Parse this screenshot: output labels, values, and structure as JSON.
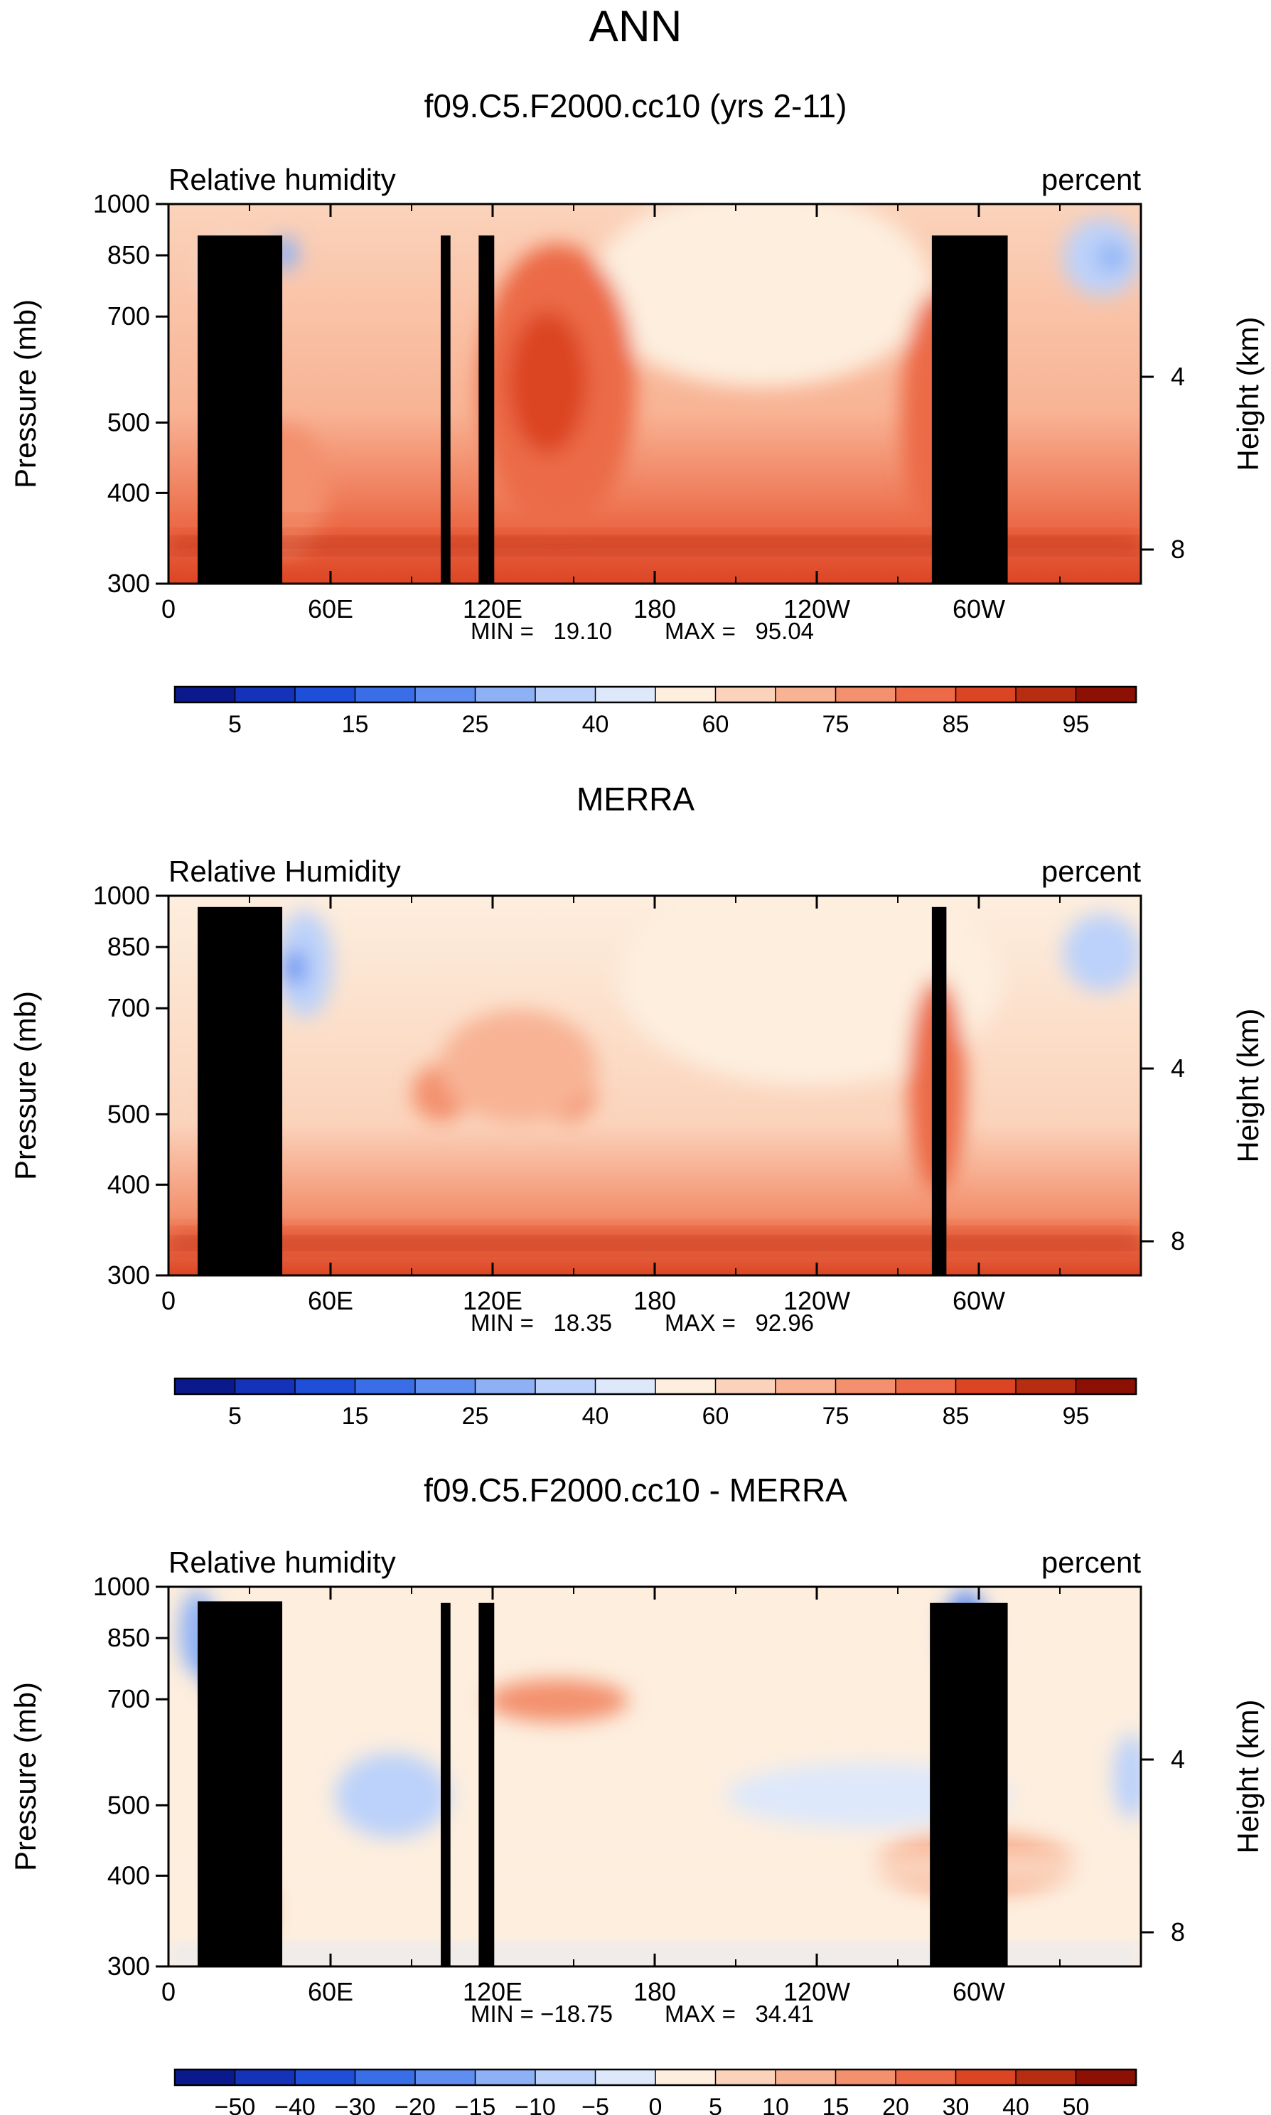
{
  "page_title": "ANN",
  "chart_data": [
    {
      "type": "heatmap",
      "title": "f09.C5.F2000.cc10 (yrs 2-11)",
      "variable": "Relative humidity",
      "units": "percent",
      "xlabel": "",
      "ylabel": "Pressure (mb)",
      "y2label": "Height (km)",
      "x_ticks": [
        "0",
        "60E",
        "120E",
        "180",
        "120W",
        "60W"
      ],
      "y_ticks": [
        "300",
        "400",
        "500",
        "700",
        "850",
        "1000"
      ],
      "y2_ticks": [
        "8",
        "4"
      ],
      "xlim": [
        0,
        360
      ],
      "ylim": [
        1000,
        300
      ],
      "min_text": "MIN =   19.10",
      "max_text": "MAX =   95.04",
      "levels": [
        "5",
        "15",
        "25",
        "40",
        "60",
        "75",
        "85",
        "95"
      ],
      "colors": [
        "#0a1a8c",
        "#1433b8",
        "#1f4fd8",
        "#3a6ee6",
        "#5f8ef0",
        "#8eb1f5",
        "#bcd2fa",
        "#dde8fb",
        "#fdeede",
        "#fbd3bb",
        "#f8b394",
        "#f3906d",
        "#ec6a47",
        "#dc4524",
        "#b72d12",
        "#8c1004"
      ]
    },
    {
      "type": "heatmap",
      "title": "MERRA",
      "variable": "Relative Humidity",
      "units": "percent",
      "xlabel": "",
      "ylabel": "Pressure (mb)",
      "y2label": "Height (km)",
      "x_ticks": [
        "0",
        "60E",
        "120E",
        "180",
        "120W",
        "60W"
      ],
      "y_ticks": [
        "300",
        "400",
        "500",
        "700",
        "850",
        "1000"
      ],
      "y2_ticks": [
        "8",
        "4"
      ],
      "xlim": [
        0,
        360
      ],
      "ylim": [
        1000,
        300
      ],
      "min_text": "MIN =   18.35",
      "max_text": "MAX =   92.96",
      "levels": [
        "5",
        "15",
        "25",
        "40",
        "60",
        "75",
        "85",
        "95"
      ],
      "colors": [
        "#0a1a8c",
        "#1433b8",
        "#1f4fd8",
        "#3a6ee6",
        "#5f8ef0",
        "#8eb1f5",
        "#bcd2fa",
        "#dde8fb",
        "#fdeede",
        "#fbd3bb",
        "#f8b394",
        "#f3906d",
        "#ec6a47",
        "#dc4524",
        "#b72d12",
        "#8c1004"
      ]
    },
    {
      "type": "heatmap",
      "title": "f09.C5.F2000.cc10 - MERRA",
      "variable": "Relative humidity",
      "units": "percent",
      "xlabel": "",
      "ylabel": "Pressure (mb)",
      "y2label": "Height (km)",
      "x_ticks": [
        "0",
        "60E",
        "120E",
        "180",
        "120W",
        "60W"
      ],
      "y_ticks": [
        "300",
        "400",
        "500",
        "700",
        "850",
        "1000"
      ],
      "y2_ticks": [
        "8",
        "4"
      ],
      "xlim": [
        0,
        360
      ],
      "ylim": [
        1000,
        300
      ],
      "min_text": "MIN = −18.75",
      "max_text": "MAX =   34.41",
      "levels": [
        "−50",
        "−40",
        "−30",
        "−20",
        "−15",
        "−10",
        "−5",
        "0",
        "5",
        "10",
        "15",
        "20",
        "30",
        "40",
        "50"
      ],
      "colors": [
        "#0a1a8c",
        "#1433b8",
        "#1f4fd8",
        "#3a6ee6",
        "#5f8ef0",
        "#8eb1f5",
        "#bcd2fa",
        "#dde8fb",
        "#fdeede",
        "#fbd3bb",
        "#f8b394",
        "#f3906d",
        "#ec6a47",
        "#dc4524",
        "#b72d12",
        "#8c1004"
      ]
    }
  ]
}
